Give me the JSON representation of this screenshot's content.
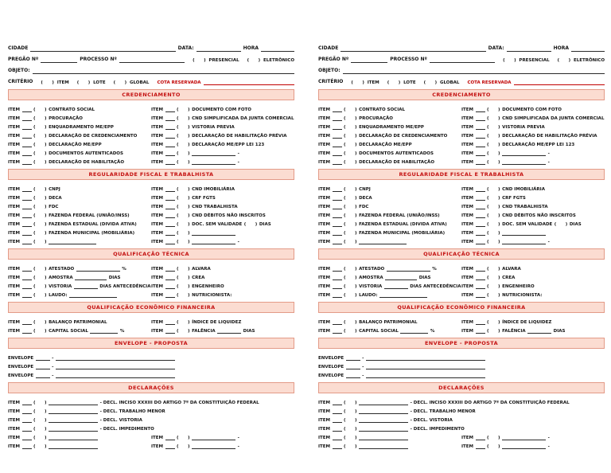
{
  "form": {
    "header": {
      "cidade": "CIDADE",
      "data": "DATA:",
      "hora": "HORA",
      "pregao": "PREGÃO Nº",
      "processo": "PROCESSO Nº",
      "presencial": "(      )  PRESENCIAL",
      "eletronico": "(      )  ELETRÔNICO",
      "objeto": "OBJETO:",
      "criterio": "CRITÉRIO",
      "crit_item": "(      )  ITEM",
      "crit_lote": "(      )  LOTE",
      "crit_global": "(      )  GLOBAL",
      "cota": "COTA RESERVADA"
    },
    "accent_color": "#c41212",
    "sections": [
      {
        "id": "credenciamento",
        "title": "CREDENCIAMENTO",
        "left": [
          [
            "ITEM",
            "~12",
            "(      )",
            "CONTRATO SOCIAL"
          ],
          [
            "ITEM",
            "~12",
            "(      )",
            "PROCURAÇÃO"
          ],
          [
            "ITEM",
            "~12",
            "(      )",
            "ENQUADRAMENTO ME/EPP"
          ],
          [
            "ITEM",
            "~12",
            "(      )",
            "DECLARAÇÃO DE CREDENCIAMENTO"
          ],
          [
            "ITEM",
            "~12",
            "(      )",
            "DECLARAÇÃO ME/EPP"
          ],
          [
            "ITEM",
            "~12",
            "(      )",
            "DOCUMENTOS AUTENTICADOS"
          ],
          [
            "ITEM",
            "~12",
            "(      )",
            "DECLARAÇÃO DE HABILITAÇÃO"
          ]
        ],
        "right": [
          [
            "ITEM",
            "~12",
            "(      )",
            "DOCUMENTO COM FOTO"
          ],
          [
            "ITEM",
            "~12",
            "(      )",
            "CND SIMPLIFICADA DA JUNTA COMERCIAL"
          ],
          [
            "ITEM",
            "~12",
            "(      )",
            "VISTORIA PREVIA"
          ],
          [
            "ITEM",
            "~12",
            "(      )",
            "DECLARAÇÃO DE HABILITAÇÃO PRÉVIA"
          ],
          [
            "ITEM",
            "~12",
            "(      )",
            "DECLARAÇÃO ME/EPP LEI 123"
          ],
          [
            "ITEM",
            "~12",
            "(      )",
            "~55",
            "-"
          ],
          [
            "ITEM",
            "~12",
            "(      )",
            "~55",
            "-"
          ]
        ]
      },
      {
        "id": "regularidade",
        "title": "REGULARIDADE FISCAL E TRABALHISTA",
        "left": [
          [
            "ITEM",
            "~12",
            "(      )",
            "CNPJ"
          ],
          [
            "ITEM",
            "~12",
            "(      )",
            "DECA"
          ],
          [
            "ITEM",
            "~12",
            "(      )",
            "FDC"
          ],
          [
            "ITEM",
            "~12",
            "(      )",
            "FAZENDA FEDERAL (UNIÃO/INSS)"
          ],
          [
            "ITEM",
            "~12",
            "(      )",
            "FAZENDA ESTADUAL (DIVIDA ATIVA)"
          ],
          [
            "ITEM",
            "~12",
            "(      )",
            "FAZENDA MUNICIPAL (MOBILIÁRIA)"
          ],
          [
            "ITEM",
            "~12",
            "(      )",
            "~60"
          ]
        ],
        "right": [
          [
            "ITEM",
            "~12",
            "(      )",
            "CND IMOBILIÁRIA"
          ],
          [
            "ITEM",
            "~12",
            "(      )",
            "CRF FGTS"
          ],
          [
            "ITEM",
            "~12",
            "(      )",
            "CND TRABALHISTA"
          ],
          [
            "ITEM",
            "~12",
            "(      )",
            "CND DÉBITOS NÃO INSCRITOS"
          ],
          [
            "ITEM",
            "~12",
            "(      )",
            "DOC. SEM VALIDADE",
            "(      )",
            "DIAS"
          ],
          [
            "ITEM",
            "~12",
            "(      )",
            "~55"
          ],
          [
            "ITEM",
            "~12",
            "(      )",
            "~55",
            "-"
          ]
        ]
      },
      {
        "id": "qualificacao-tecnica",
        "title": "QUALIFICAÇÃO TÉCNICA",
        "left": [
          [
            "ITEM",
            "~12",
            "(      )",
            "ATESTADO",
            "~55",
            "%"
          ],
          [
            "ITEM",
            "~12",
            "(      )",
            "AMOSTRA",
            "~40",
            "DIAS"
          ],
          [
            "ITEM",
            "~12",
            "(      )",
            "VISTORIA",
            "~30",
            "DIAS ANTECEDÊNCIA"
          ],
          [
            "ITEM",
            "~12",
            "(      )",
            "LAUDO:",
            "~60"
          ]
        ],
        "right": [
          [
            "ITEM",
            "~12",
            "(      )",
            "ALVARA"
          ],
          [
            "ITEM",
            "~12",
            "(      )",
            "CREA"
          ],
          [
            "ITEM",
            "~12",
            "(      )",
            "ENGENHEIRO"
          ],
          [
            "ITEM",
            "~12",
            "(      )",
            "NUTRICIONISTA:"
          ]
        ]
      },
      {
        "id": "qualificacao-economica",
        "title": "QUALIFICAÇÃO ECONÔMICO FINANCEIRA",
        "left": [
          [
            "ITEM",
            "~12",
            "(      )",
            "BALANÇO PATRIMONIAL"
          ],
          [
            "ITEM",
            "~12",
            "(      )",
            "CAPITAL SOCIAL",
            "~35",
            "%"
          ]
        ],
        "right": [
          [
            "ITEM",
            "~12",
            "(      )",
            "ÍNDICE DE LIQUIDEZ"
          ],
          [
            "ITEM",
            "~12",
            "(      )",
            "FALÊNCIA",
            "~30",
            "DIAS"
          ]
        ]
      },
      {
        "id": "envelope-proposta",
        "title": "ENVELOPE  - PROPOSTA",
        "full": [
          [
            "ENVELOPE",
            "~18",
            "-",
            "~150"
          ],
          [
            "ENVELOPE",
            "~18",
            "-",
            "~150"
          ],
          [
            "ENVELOPE",
            "~18",
            "-",
            "~150"
          ]
        ]
      },
      {
        "id": "declaracoes",
        "title": "DECLARAÇÕES",
        "full": [
          [
            "ITEM",
            "~12",
            "(      )",
            "~62",
            "- DECL. INCISO XXXIII DO ARTIGO 7º DA CONSTITUIÇÃO FEDERAL"
          ],
          [
            "ITEM",
            "~12",
            "(      )",
            "~62",
            "- DECL. TRABALHO MENOR"
          ],
          [
            "ITEM",
            "~12",
            "(      )",
            "~62",
            "- DECL. VISTORIA"
          ],
          [
            "ITEM",
            "~12",
            "(      )",
            "~62",
            "- DECL. IMPEDIMENTO"
          ]
        ],
        "left": [
          [
            "ITEM",
            "~12",
            "(      )",
            "~62"
          ],
          [
            "ITEM",
            "~12",
            "(      )",
            "~62"
          ]
        ],
        "right": [
          [
            "ITEM",
            "~12",
            "(      )",
            "~55",
            "-"
          ],
          [
            "ITEM",
            "~12",
            "(      )",
            "~55",
            "-"
          ]
        ]
      }
    ]
  }
}
